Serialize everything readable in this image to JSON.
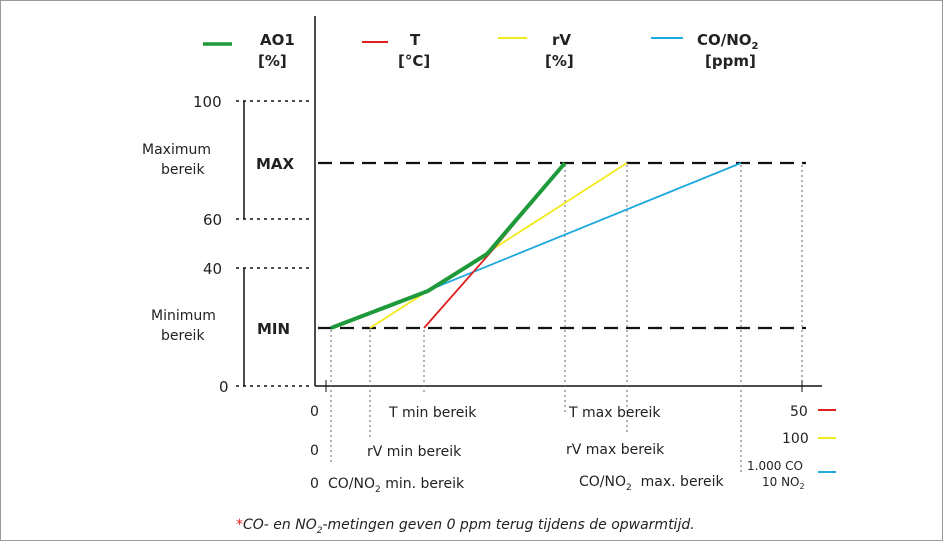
{
  "chart_data": {
    "type": "line",
    "title": "",
    "legend": [
      {
        "label": "AO1",
        "unit": "[%]",
        "color": "#1e9a3a"
      },
      {
        "label": "T",
        "unit": "[°C]",
        "color": "#e02020"
      },
      {
        "label": "rV",
        "unit": "[%]",
        "color": "#f2ea1a"
      },
      {
        "label": "CO/NO2",
        "label_main": "CO/NO",
        "label_sub": "2",
        "unit": "[ppm]",
        "color": "#1ea8e0"
      }
    ],
    "y_ticks": [
      "0",
      "40",
      "60",
      "100"
    ],
    "y_band_labels": {
      "max": "MAX",
      "min": "MIN"
    },
    "y_ranges": {
      "maximum": {
        "line1": "Maximum",
        "line2": "bereik"
      },
      "minimum": {
        "line1": "Minimum",
        "line2": "bereik"
      }
    },
    "x_scales": [
      {
        "name": "T",
        "start": "0",
        "end": "50",
        "color": "#e02020",
        "min_label": "T min bereik",
        "max_label": "T max bereik"
      },
      {
        "name": "rV",
        "start": "0",
        "end": "100",
        "color": "#f2ea1a",
        "min_label": "rV min bereik",
        "max_label": "rV max bereik"
      },
      {
        "name": "CO/NO2",
        "start": "0",
        "end_line1": "1.000 CO",
        "end_line2_main": "10 NO",
        "end_line2_sub": "2",
        "color": "#1ea8e0",
        "min_label_main": "CO/NO",
        "min_label_sub": "2",
        "min_label_rest": " min. bereik",
        "max_label_main": "CO/NO",
        "max_label_sub": "2",
        "max_label_rest": "  max. bereik"
      }
    ],
    "series": [
      {
        "name": "AO1",
        "color": "#1e9a3a"
      },
      {
        "name": "T",
        "color": "#e02020"
      },
      {
        "name": "rV",
        "color": "#f2ea1a"
      },
      {
        "name": "CO/NO2",
        "color": "#1ea8e0"
      }
    ],
    "grid": false
  },
  "footnote": {
    "star": "*",
    "part1": "CO- en NO",
    "sub": "2",
    "part2": "-metingen geven 0 ppm terug tijdens de opwarmtijd."
  }
}
